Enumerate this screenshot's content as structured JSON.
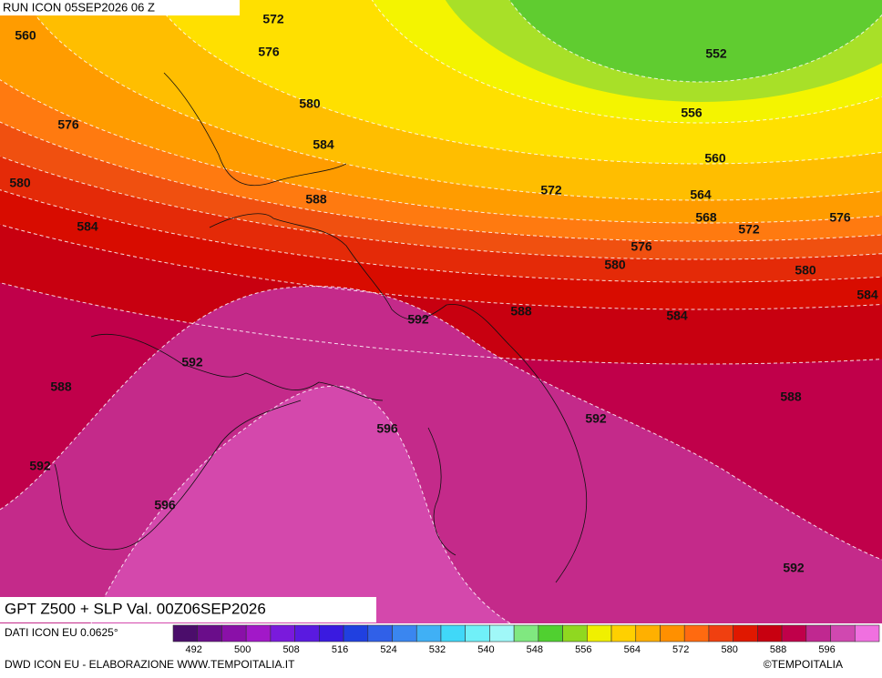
{
  "header": "RUN ICON 05SEP2026 06 Z",
  "title": "GPT Z500 + SLP Val. 00Z06SEP2026",
  "source": "DATI ICON EU 0.0625°",
  "credit": "DWD ICON EU - ELABORAZIONE WWW.TEMPOITALIA.IT",
  "copyright": "©TEMPOITALIA",
  "contour_labels": [
    560,
    572,
    576,
    576,
    580,
    584,
    580,
    584,
    588,
    552,
    556,
    560,
    572,
    564,
    568,
    572,
    576,
    576,
    580,
    580,
    584,
    584,
    588,
    592,
    592,
    588,
    588,
    592,
    596,
    592,
    596,
    592
  ],
  "colorbar": {
    "colors": [
      "#4b0d6b",
      "#6a0d8a",
      "#8a10a8",
      "#a218c8",
      "#7a1adc",
      "#5a1ae0",
      "#3a1ae0",
      "#2040e0",
      "#3060e8",
      "#3a86f0",
      "#40b0f5",
      "#40d8f8",
      "#70f0f8",
      "#a0f8f8",
      "#80e880",
      "#50d030",
      "#90d820",
      "#f0f000",
      "#ffd000",
      "#ffb000",
      "#ff9000",
      "#ff6a10",
      "#f04010",
      "#e01800",
      "#c80010",
      "#c0004a",
      "#c02890",
      "#d048b0",
      "#f070e0"
    ],
    "labels": [
      492,
      500,
      508,
      516,
      524,
      532,
      540,
      548,
      556,
      564,
      572,
      580,
      588,
      596
    ]
  }
}
